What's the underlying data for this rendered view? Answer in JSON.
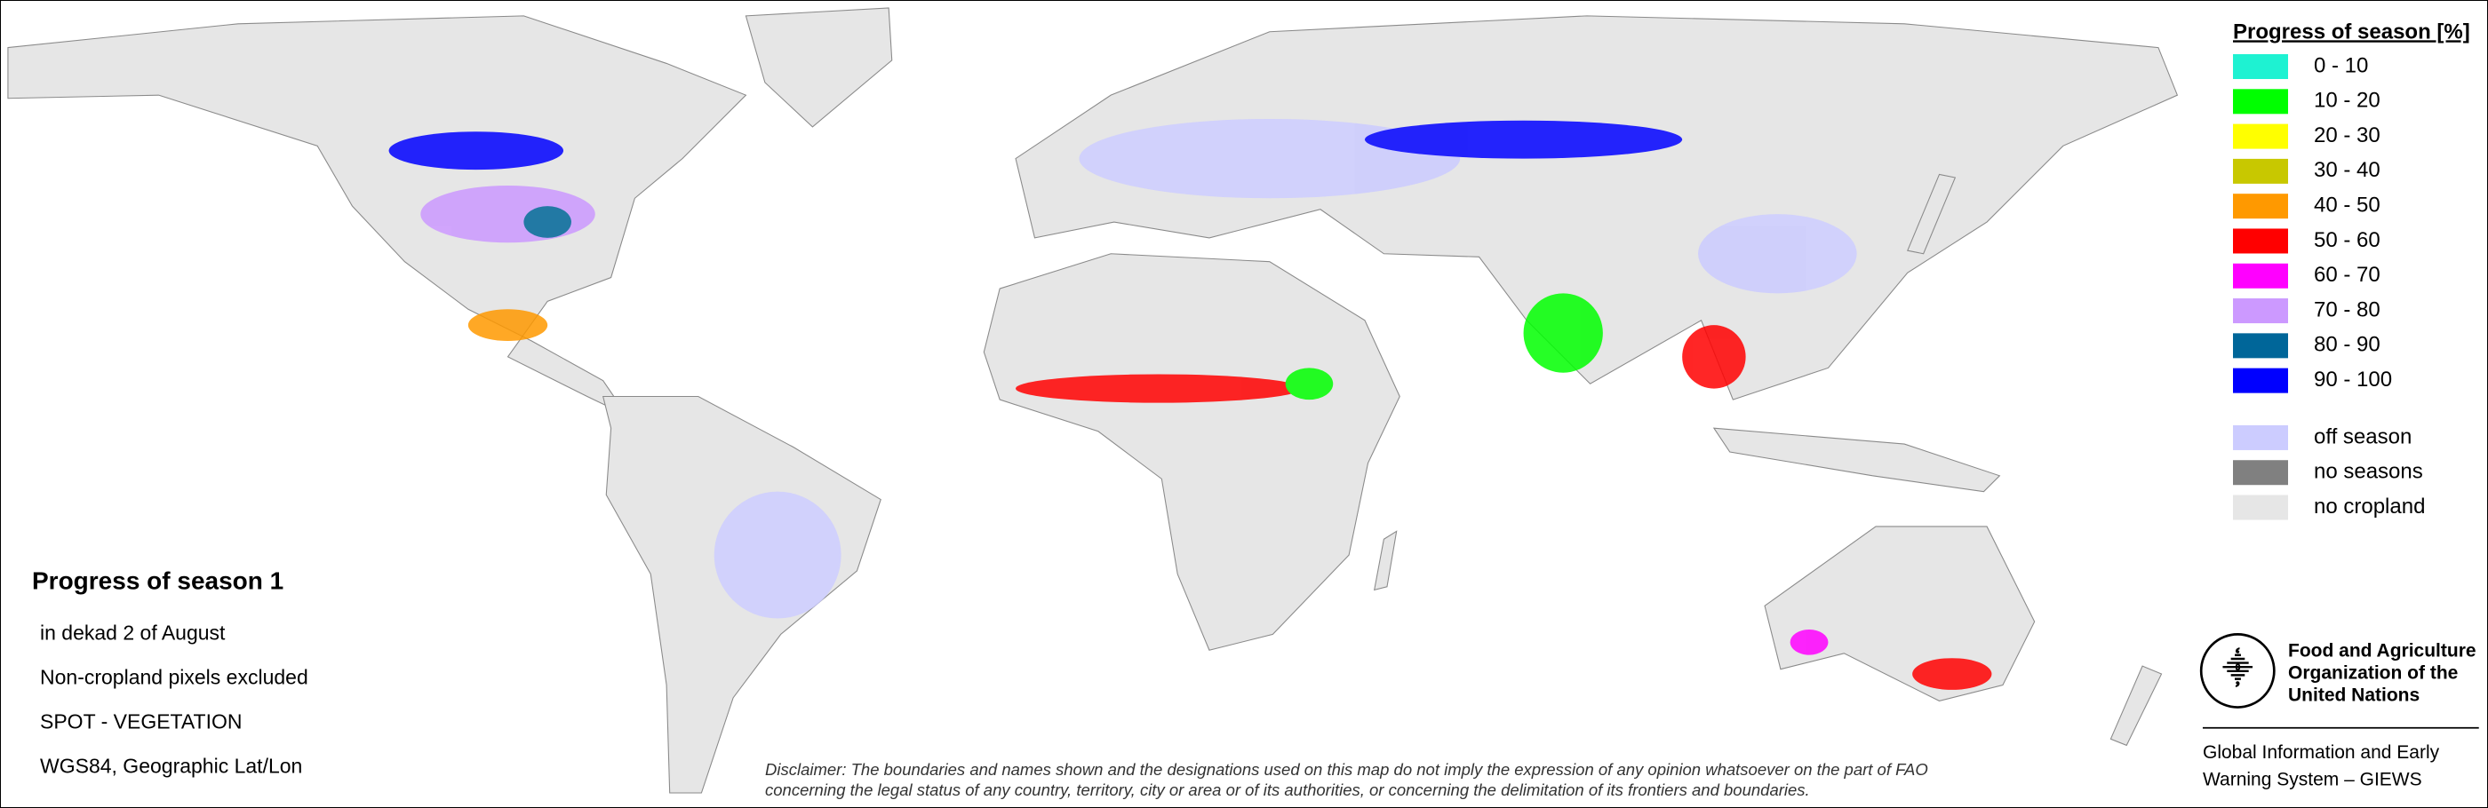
{
  "legend": {
    "title": "Progress of season [%]",
    "items": [
      {
        "label": "0 - 10",
        "color": "#1ef2d2"
      },
      {
        "label": "10 - 20",
        "color": "#00ff00"
      },
      {
        "label": "20 - 30",
        "color": "#ffff00"
      },
      {
        "label": "30 - 40",
        "color": "#c8c800"
      },
      {
        "label": "40 - 50",
        "color": "#ff9900"
      },
      {
        "label": "50 - 60",
        "color": "#ff0000"
      },
      {
        "label": "60 - 70",
        "color": "#ff00ff"
      },
      {
        "label": "70 - 80",
        "color": "#cc99ff"
      },
      {
        "label": "80 - 90",
        "color": "#006699"
      },
      {
        "label": "90 - 100",
        "color": "#0000ff"
      },
      {
        "label": "off season",
        "color": "#ccccff"
      },
      {
        "label": "no seasons",
        "color": "#808080"
      },
      {
        "label": "no cropland",
        "color": "#e6e6e6"
      }
    ]
  },
  "info": {
    "title": "Progress of season 1",
    "lines": [
      "in dekad 2 of August",
      "Non-cropland pixels excluded",
      "SPOT - VEGETATION",
      "WGS84, Geographic Lat/Lon"
    ]
  },
  "disclaimer": [
    "Disclaimer: The boundaries and names shown and the designations used on this map do not imply the expression of any opinion whatsoever on the part of FAO",
    "concerning the legal status of any country, territory, city or area or of its authorities, or concerning the delimitation of its frontiers and boundaries."
  ],
  "logo": {
    "lines": [
      "Food and Agriculture",
      "Organization of the",
      "United Nations"
    ]
  },
  "giews": [
    "Global Information and Early",
    "Warning System – GIEWS"
  ]
}
